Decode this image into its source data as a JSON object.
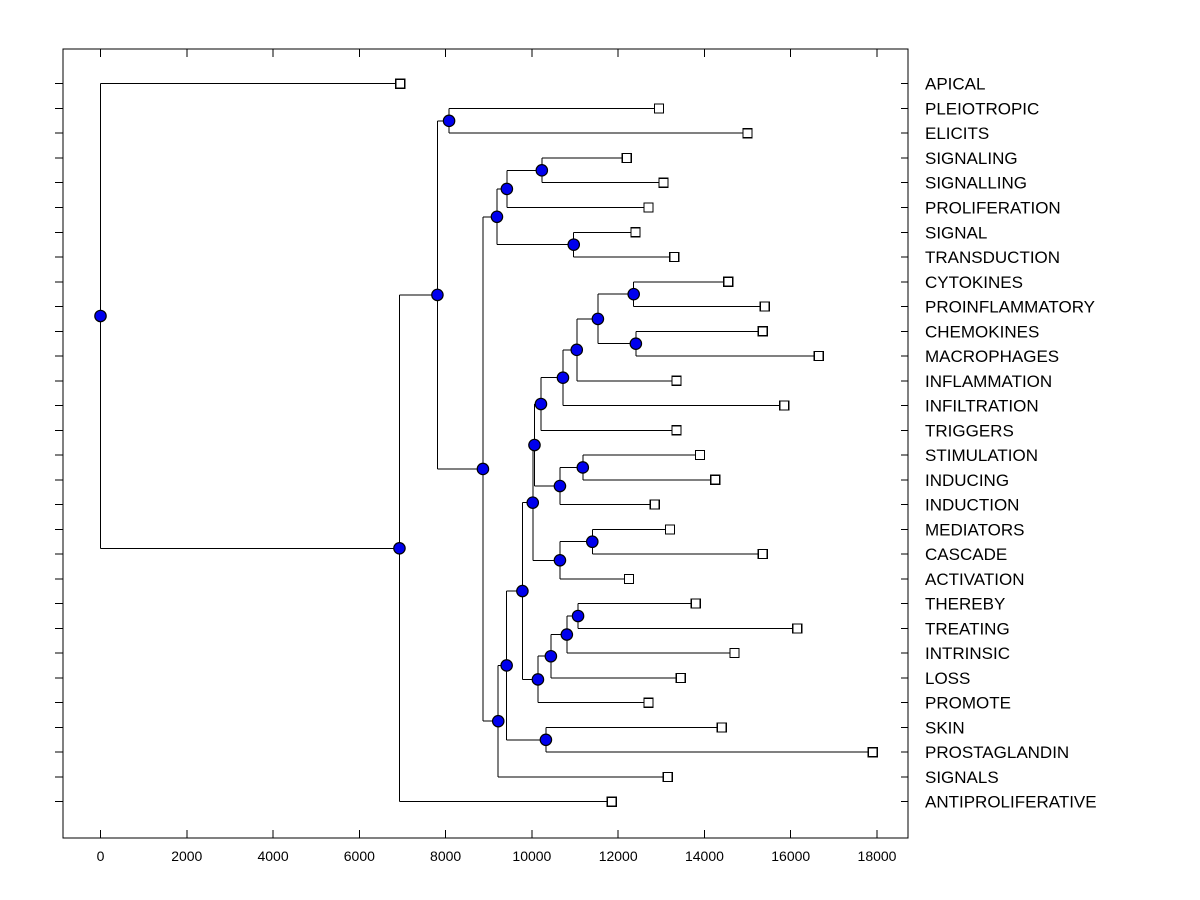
{
  "figure": {
    "background": "#ffffff"
  },
  "chart_data": {
    "type": "dendrogram",
    "orientation": "horizontal-left-to-right",
    "title": "",
    "xlabel": "",
    "ylabel": "",
    "grid": false,
    "xlim": [
      -870,
      18720
    ],
    "x_ticks": [
      0,
      2000,
      4000,
      6000,
      8000,
      10000,
      12000,
      14000,
      16000,
      18000
    ],
    "leaf_labels_position": "right",
    "leaves": [
      {
        "id": "L1",
        "label": "APICAL",
        "x": 6950
      },
      {
        "id": "L2",
        "label": "PLEIOTROPIC",
        "x": 12950
      },
      {
        "id": "L3",
        "label": "ELICITS",
        "x": 15000
      },
      {
        "id": "L4",
        "label": "SIGNALING",
        "x": 12200
      },
      {
        "id": "L5",
        "label": "SIGNALLING",
        "x": 13050
      },
      {
        "id": "L6",
        "label": "PROLIFERATION",
        "x": 12700
      },
      {
        "id": "L7",
        "label": "SIGNAL",
        "x": 12400
      },
      {
        "id": "L8",
        "label": "TRANSDUCTION",
        "x": 13300
      },
      {
        "id": "L9",
        "label": "CYTOKINES",
        "x": 14550
      },
      {
        "id": "L10",
        "label": "PROINFLAMMATORY",
        "x": 15400
      },
      {
        "id": "L11",
        "label": "CHEMOKINES",
        "x": 15350
      },
      {
        "id": "L12",
        "label": "MACROPHAGES",
        "x": 16650
      },
      {
        "id": "L13",
        "label": "INFLAMMATION",
        "x": 13350
      },
      {
        "id": "L14",
        "label": "INFILTRATION",
        "x": 15850
      },
      {
        "id": "L15",
        "label": "TRIGGERS",
        "x": 13350
      },
      {
        "id": "L16",
        "label": "STIMULATION",
        "x": 13900
      },
      {
        "id": "L17",
        "label": "INDUCING",
        "x": 14250
      },
      {
        "id": "L18",
        "label": "INDUCTION",
        "x": 12850
      },
      {
        "id": "L19",
        "label": "MEDIATORS",
        "x": 13200
      },
      {
        "id": "L20",
        "label": "CASCADE",
        "x": 15350
      },
      {
        "id": "L21",
        "label": "ACTIVATION",
        "x": 12250
      },
      {
        "id": "L22",
        "label": "THEREBY",
        "x": 13800
      },
      {
        "id": "L23",
        "label": "TREATING",
        "x": 16150
      },
      {
        "id": "L24",
        "label": "INTRINSIC",
        "x": 14700
      },
      {
        "id": "L25",
        "label": "LOSS",
        "x": 13450
      },
      {
        "id": "L26",
        "label": "PROMOTE",
        "x": 12700
      },
      {
        "id": "L27",
        "label": "SKIN",
        "x": 14400
      },
      {
        "id": "L28",
        "label": "PROSTAGLANDIN",
        "x": 17900
      },
      {
        "id": "L29",
        "label": "SIGNALS",
        "x": 13150
      },
      {
        "id": "L30",
        "label": "ANTIPROLIFERATIVE",
        "x": 11850
      }
    ],
    "internal_nodes": [
      {
        "id": "n1",
        "x": 0,
        "children": [
          "L1",
          "n2"
        ]
      },
      {
        "id": "n2",
        "x": 6930,
        "children": [
          "n3",
          "L30"
        ]
      },
      {
        "id": "n3",
        "x": 7810,
        "children": [
          "n4",
          "n5"
        ]
      },
      {
        "id": "n4",
        "x": 8080,
        "children": [
          "L2",
          "L3"
        ]
      },
      {
        "id": "n5",
        "x": 8865,
        "children": [
          "n6",
          "n10"
        ]
      },
      {
        "id": "n6",
        "x": 9190,
        "children": [
          "n7",
          "n9"
        ]
      },
      {
        "id": "n7",
        "x": 9420,
        "children": [
          "n8",
          "L6"
        ]
      },
      {
        "id": "n8",
        "x": 10230,
        "children": [
          "L4",
          "L5"
        ]
      },
      {
        "id": "n9",
        "x": 10970,
        "children": [
          "L7",
          "L8"
        ]
      },
      {
        "id": "n10",
        "x": 9220,
        "children": [
          "n11",
          "L29"
        ]
      },
      {
        "id": "n11",
        "x": 9415,
        "children": [
          "n12",
          "n27"
        ]
      },
      {
        "id": "n12",
        "x": 9780,
        "children": [
          "n13",
          "n23"
        ]
      },
      {
        "id": "n13",
        "x": 10020,
        "children": [
          "n14",
          "n19"
        ]
      },
      {
        "id": "n14",
        "x": 10060,
        "children": [
          "n15",
          "n18"
        ]
      },
      {
        "id": "n15",
        "x": 10210,
        "children": [
          "n16",
          "L15"
        ]
      },
      {
        "id": "n16",
        "x": 10720,
        "children": [
          "n17",
          "L14"
        ]
      },
      {
        "id": "n17",
        "x": 11040,
        "children": [
          "n21",
          "L13"
        ]
      },
      {
        "id": "n18",
        "x": 10650,
        "children": [
          "n22",
          "L18"
        ]
      },
      {
        "id": "n19",
        "x": 10650,
        "children": [
          "n20",
          "L21"
        ]
      },
      {
        "id": "n20",
        "x": 11400,
        "children": [
          "L19",
          "L20"
        ]
      },
      {
        "id": "n21",
        "x": 11530,
        "children": [
          "n25",
          "n26"
        ]
      },
      {
        "id": "n22",
        "x": 11180,
        "children": [
          "L16",
          "L17"
        ]
      },
      {
        "id": "n23",
        "x": 10140,
        "children": [
          "n24",
          "L26"
        ]
      },
      {
        "id": "n24",
        "x": 10440,
        "children": [
          "n28",
          "L25"
        ]
      },
      {
        "id": "n25",
        "x": 12360,
        "children": [
          "L9",
          "L10"
        ]
      },
      {
        "id": "n26",
        "x": 12410,
        "children": [
          "L11",
          "L12"
        ]
      },
      {
        "id": "n27",
        "x": 10325,
        "children": [
          "L27",
          "L28"
        ]
      },
      {
        "id": "n28",
        "x": 10810,
        "children": [
          "n29",
          "L24"
        ]
      },
      {
        "id": "n29",
        "x": 11070,
        "children": [
          "L22",
          "L23"
        ]
      }
    ],
    "root": "n1",
    "styles": {
      "line_color": "#000000",
      "axis_color": "#000000",
      "internal_node_fill": "#0000EE",
      "internal_node_edge": "#000000",
      "leaf_marker_fill": "#ffffff",
      "leaf_marker_edge": "#000000",
      "background": "#ffffff"
    }
  }
}
